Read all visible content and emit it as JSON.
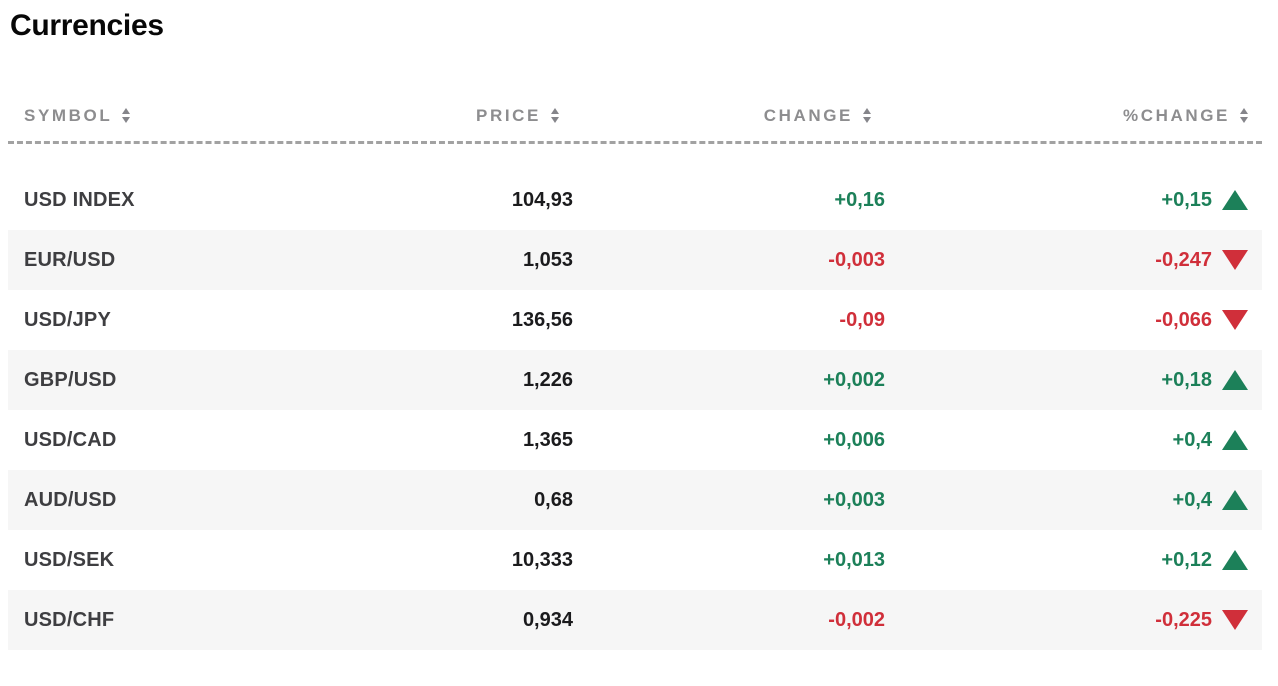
{
  "page": {
    "title": "Currencies"
  },
  "table": {
    "columns": [
      {
        "label": "SYMBOL",
        "align": "left",
        "sort_icon": "up-down-sort-arrows"
      },
      {
        "label": "PRICE",
        "align": "right",
        "sort_icon": "up-down-sort-arrows"
      },
      {
        "label": "CHANGE",
        "align": "right",
        "sort_icon": "up-down-sort-arrows"
      },
      {
        "label": "%CHANGE",
        "align": "right",
        "sort_icon": "up-down-sort-arrows"
      }
    ],
    "rows": [
      {
        "symbol": "USD INDEX",
        "price": "104,93",
        "change": "+0,16",
        "pct_change": "+0,15",
        "direction": "up"
      },
      {
        "symbol": "EUR/USD",
        "price": "1,053",
        "change": "-0,003",
        "pct_change": "-0,247",
        "direction": "down"
      },
      {
        "symbol": "USD/JPY",
        "price": "136,56",
        "change": "-0,09",
        "pct_change": "-0,066",
        "direction": "down"
      },
      {
        "symbol": "GBP/USD",
        "price": "1,226",
        "change": "+0,002",
        "pct_change": "+0,18",
        "direction": "up"
      },
      {
        "symbol": "USD/CAD",
        "price": "1,365",
        "change": "+0,006",
        "pct_change": "+0,4",
        "direction": "up"
      },
      {
        "symbol": "AUD/USD",
        "price": "0,68",
        "change": "+0,003",
        "pct_change": "+0,4",
        "direction": "up"
      },
      {
        "symbol": "USD/SEK",
        "price": "10,333",
        "change": "+0,013",
        "pct_change": "+0,12",
        "direction": "up"
      },
      {
        "symbol": "USD/CHF",
        "price": "0,934",
        "change": "-0,002",
        "pct_change": "-0,225",
        "direction": "down"
      }
    ],
    "icons": {
      "trend_up": "triangle-up",
      "trend_down": "triangle-down"
    },
    "colors": {
      "positive": "#1c8059",
      "negative": "#d02f3a",
      "header_text": "#8d8d8f",
      "symbol_text": "#3e3e41",
      "price_text": "#1b1b1d",
      "row_alternate": "#f6f6f6",
      "divider": "#a2a2a2"
    }
  }
}
